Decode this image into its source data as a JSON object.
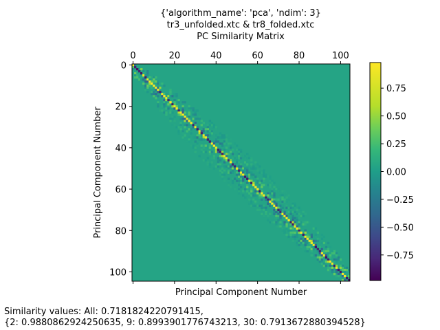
{
  "chart_data": {
    "type": "heatmap",
    "title_lines": [
      "{'algorithm_name': 'pca', 'ndim': 3}",
      "tr3_unfolded.xtc & tr8_folded.xtc",
      "PC Similarity Matrix"
    ],
    "xlabel": "Principal Component Number",
    "ylabel": "Principal Component Number",
    "matrix_size": 105,
    "x_ticks": [
      0,
      20,
      40,
      60,
      80,
      100
    ],
    "y_ticks": [
      0,
      20,
      40,
      60,
      80,
      100
    ],
    "x_range": [
      0,
      105
    ],
    "y_range": [
      0,
      105
    ],
    "x_axis_position": "top",
    "colormap": "viridis",
    "color_range": [
      -0.98,
      0.98
    ],
    "colorbar_ticks": [
      0.75,
      0.5,
      0.25,
      0.0,
      -0.25,
      -0.5,
      -0.75
    ],
    "colorbar_tick_labels": [
      "0.75",
      "0.50",
      "0.25",
      "0.00",
      "−0.25",
      "−0.50",
      "−0.75"
    ],
    "diagonal_band_summary": "values near the diagonal range from about -0.9 to 0.98; off-diagonal values are close to 0.05"
  },
  "footer": {
    "line1": "Similarity values: All: 0.7181824220791415,",
    "line2": "{2: 0.9880862924250635, 9: 0.8993901776743213, 30: 0.7913672880394528}"
  }
}
